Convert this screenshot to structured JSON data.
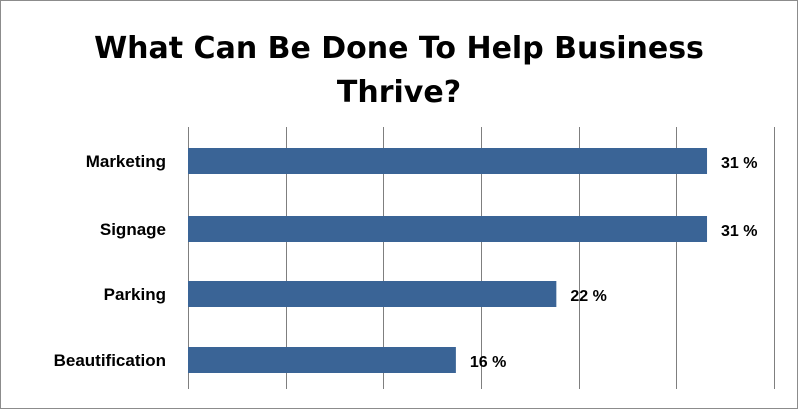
{
  "chart_data": {
    "type": "bar",
    "orientation": "horizontal",
    "title_lines": [
      "What Can Be Done To Help Business",
      "Thrive?"
    ],
    "categories": [
      "Marketing",
      "Signage",
      "Parking",
      "Beautification"
    ],
    "values": [
      31,
      31,
      22,
      16
    ],
    "value_labels": [
      "31 %",
      "31 %",
      "22 %",
      "16 %"
    ],
    "xlim": [
      0,
      35
    ],
    "grid": true,
    "bar_color": "#3a6496"
  }
}
